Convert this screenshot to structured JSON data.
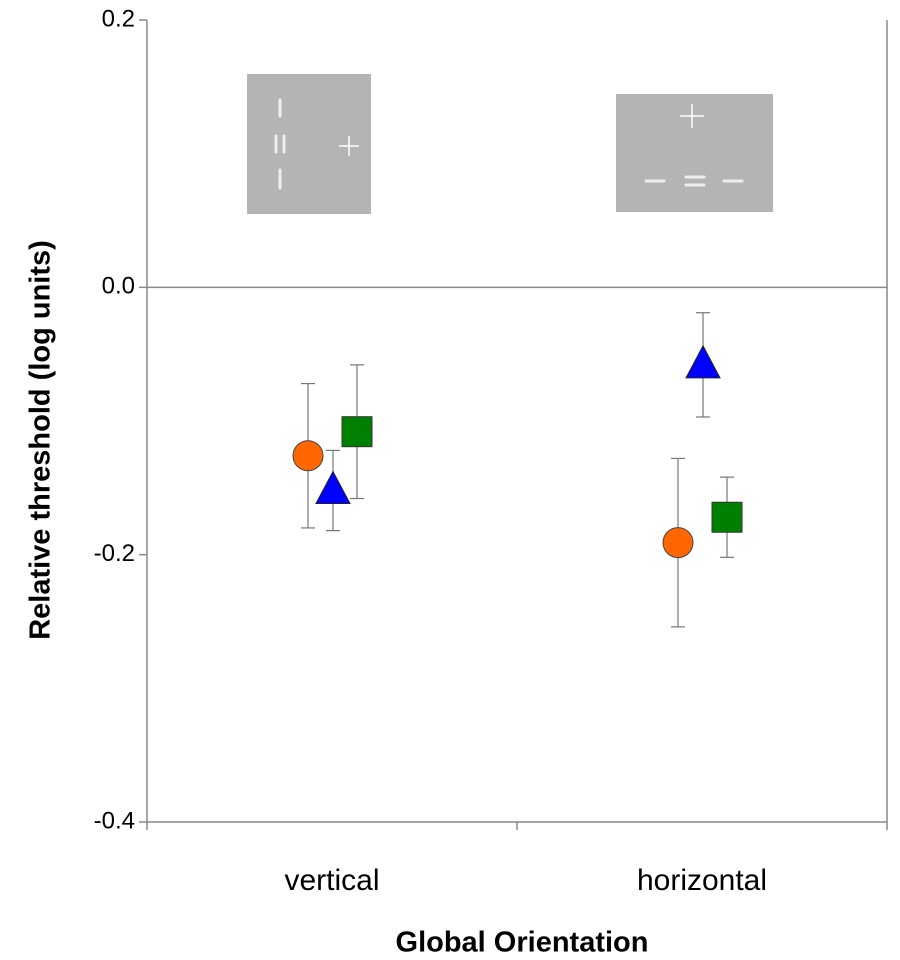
{
  "chart_data": {
    "type": "scatter",
    "y_label": "Relative threshold (log units)",
    "x_label": "Global Orientation",
    "categories": [
      "vertical",
      "horizontal"
    ],
    "series": [
      {
        "color": "#ff6600",
        "marker": "circle",
        "values": [
          -0.126,
          -0.191
        ],
        "errors": [
          0.054,
          0.063
        ]
      },
      {
        "color": "#0000ff",
        "marker": "triangle",
        "values": [
          -0.152,
          -0.058
        ],
        "errors": [
          0.03,
          0.039
        ]
      },
      {
        "color": "#008000",
        "marker": "square",
        "values": [
          -0.108,
          -0.172
        ],
        "errors": [
          0.05,
          0.03
        ]
      }
    ],
    "ylim": [
      -0.4,
      0.2
    ],
    "yticks": [
      -0.4,
      -0.2,
      {
        "value": 0,
        "label": "0.0"
      },
      0.2
    ],
    "grid": false
  }
}
